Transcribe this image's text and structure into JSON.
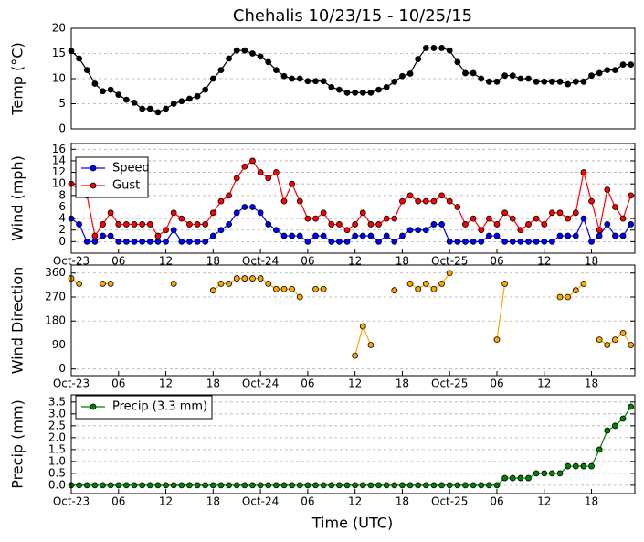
{
  "title": "Chehalis 10/23/15 - 10/25/15",
  "xlabel": "Time (UTC)",
  "chart_data": [
    {
      "type": "line",
      "ylabel": "Temp (°C)",
      "color": "#000000",
      "grid": true,
      "x": [
        0,
        1,
        2,
        3,
        4,
        5,
        6,
        7,
        8,
        9,
        10,
        11,
        12,
        13,
        14,
        15,
        16,
        17,
        18,
        19,
        20,
        21,
        22,
        23,
        24,
        25,
        26,
        27,
        28,
        29,
        30,
        31,
        32,
        33,
        34,
        35,
        36,
        37,
        38,
        39,
        40,
        41,
        42,
        43,
        44,
        45,
        46,
        47,
        48,
        49,
        50,
        51,
        52,
        53,
        54,
        55,
        56,
        57,
        58,
        59,
        60,
        61,
        62,
        63,
        64,
        65,
        66,
        67,
        68,
        69,
        70,
        71
      ],
      "values": [
        15.5,
        14,
        11.7,
        9,
        7.5,
        7.8,
        6.8,
        5.8,
        5.2,
        4,
        4,
        3.3,
        4,
        5,
        5.5,
        6,
        6.5,
        7.8,
        10,
        11.7,
        14,
        15.6,
        15.6,
        15,
        14.4,
        13.3,
        11.7,
        10.5,
        10,
        10,
        9.5,
        9.5,
        9.5,
        8.3,
        7.8,
        7.2,
        7.2,
        7.2,
        7.2,
        7.8,
        8.3,
        9.4,
        10.5,
        11,
        13.9,
        16.1,
        16.1,
        16.1,
        15.6,
        13.3,
        11.1,
        11.1,
        10,
        9.4,
        9.4,
        10.6,
        10.6,
        10,
        10,
        9.4,
        9.4,
        9.4,
        9.4,
        8.9,
        9.4,
        9.4,
        10.6,
        11.1,
        11.7,
        11.7,
        12.8,
        12.8
      ],
      "xlim": [
        0,
        71.5
      ],
      "ylim": [
        0,
        20
      ],
      "yticks": [
        0,
        5,
        10,
        15,
        20
      ]
    },
    {
      "type": "line",
      "ylabel": "Wind (mph)",
      "grid": true,
      "legend": "upper left",
      "x": [
        0,
        1,
        2,
        3,
        4,
        5,
        6,
        7,
        8,
        9,
        10,
        11,
        12,
        13,
        14,
        15,
        16,
        17,
        18,
        19,
        20,
        21,
        22,
        23,
        24,
        25,
        26,
        27,
        28,
        29,
        30,
        31,
        32,
        33,
        34,
        35,
        36,
        37,
        38,
        39,
        40,
        41,
        42,
        43,
        44,
        45,
        46,
        47,
        48,
        49,
        50,
        51,
        52,
        53,
        54,
        55,
        56,
        57,
        58,
        59,
        60,
        61,
        62,
        63,
        64,
        65,
        66,
        67,
        68,
        69,
        70,
        71
      ],
      "series": [
        {
          "name": "Speed",
          "color": "#0000ff",
          "values": [
            4,
            3,
            0,
            0,
            1,
            1,
            0,
            0,
            0,
            0,
            0,
            0,
            0,
            2,
            0,
            0,
            0,
            0,
            1,
            2,
            3,
            5,
            6,
            6,
            5,
            3,
            2,
            1,
            1,
            1,
            0,
            1,
            1,
            0,
            0,
            0,
            1,
            1,
            1,
            0,
            1,
            0,
            1,
            2,
            2,
            2,
            3,
            3,
            0,
            0,
            0,
            0,
            0,
            1,
            1,
            0,
            0,
            0,
            0,
            0,
            0,
            0,
            1,
            1,
            1,
            4,
            0,
            1,
            3,
            1,
            1,
            3
          ]
        },
        {
          "name": "Gust",
          "color": "#ff0000",
          "values": [
            10,
            9,
            8,
            1,
            3,
            5,
            3,
            3,
            3,
            3,
            3,
            1,
            2,
            5,
            4,
            3,
            3,
            3,
            5,
            7,
            8,
            11,
            13,
            14,
            12,
            11,
            12,
            7,
            10,
            7,
            4,
            4,
            5,
            3,
            3,
            2,
            3,
            5,
            3,
            3,
            4,
            4,
            7,
            8,
            7,
            7,
            7,
            8,
            7,
            6,
            3,
            4,
            2,
            4,
            3,
            5,
            4,
            2,
            3,
            4,
            3,
            5,
            5,
            4,
            5,
            12,
            7,
            2,
            9,
            6,
            4,
            8
          ]
        }
      ],
      "xlim": [
        0,
        71.5
      ],
      "ylim": [
        -2,
        17
      ],
      "yticks": [
        0,
        2,
        4,
        6,
        8,
        10,
        12,
        14,
        16
      ],
      "xticks": [
        {
          "value": 0,
          "label": "Oct-23"
        },
        {
          "value": 6,
          "label": "06"
        },
        {
          "value": 12,
          "label": "12"
        },
        {
          "value": 18,
          "label": "18"
        },
        {
          "value": 24,
          "label": "Oct-24"
        },
        {
          "value": 30,
          "label": "06"
        },
        {
          "value": 36,
          "label": "12"
        },
        {
          "value": 42,
          "label": "18"
        },
        {
          "value": 48,
          "label": "Oct-25"
        },
        {
          "value": 54,
          "label": "06"
        },
        {
          "value": 60,
          "label": "12"
        },
        {
          "value": 66,
          "label": "18"
        }
      ]
    },
    {
      "type": "line",
      "ylabel": "Wind Direction",
      "color": "#ffa500",
      "grid": true,
      "x": [
        0,
        1,
        2,
        3,
        4,
        5,
        6,
        7,
        8,
        9,
        10,
        11,
        12,
        13,
        14,
        15,
        16,
        17,
        18,
        19,
        20,
        21,
        22,
        23,
        24,
        25,
        26,
        27,
        28,
        29,
        30,
        31,
        32,
        33,
        34,
        35,
        36,
        37,
        38,
        39,
        40,
        41,
        42,
        43,
        44,
        45,
        46,
        47,
        48,
        49,
        50,
        51,
        52,
        53,
        54,
        55,
        56,
        57,
        58,
        59,
        60,
        61,
        62,
        63,
        64,
        65,
        66,
        67,
        68,
        69,
        70,
        71
      ],
      "values": [
        340,
        320,
        null,
        null,
        320,
        320,
        null,
        null,
        null,
        null,
        null,
        null,
        null,
        320,
        null,
        null,
        null,
        null,
        295,
        320,
        320,
        340,
        340,
        340,
        340,
        320,
        300,
        300,
        300,
        270,
        null,
        300,
        300,
        null,
        null,
        null,
        50,
        160,
        90,
        null,
        null,
        295,
        null,
        320,
        300,
        320,
        300,
        320,
        360,
        null,
        null,
        null,
        null,
        null,
        110,
        320,
        null,
        null,
        null,
        null,
        null,
        null,
        270,
        270,
        295,
        320,
        null,
        110,
        90,
        110,
        135,
        90
      ],
      "xlim": [
        0,
        71.5
      ],
      "ylim": [
        -25,
        390
      ],
      "yticks": [
        0,
        90,
        180,
        270,
        360
      ],
      "xticks": [
        {
          "value": 0,
          "label": "Oct-23"
        },
        {
          "value": 6,
          "label": "06"
        },
        {
          "value": 12,
          "label": "12"
        },
        {
          "value": 18,
          "label": "18"
        },
        {
          "value": 24,
          "label": "Oct-24"
        },
        {
          "value": 30,
          "label": "06"
        },
        {
          "value": 36,
          "label": "12"
        },
        {
          "value": 42,
          "label": "18"
        },
        {
          "value": 48,
          "label": "Oct-25"
        },
        {
          "value": 54,
          "label": "06"
        },
        {
          "value": 60,
          "label": "12"
        },
        {
          "value": 66,
          "label": "18"
        }
      ]
    },
    {
      "type": "line",
      "ylabel": "Precip (mm)",
      "grid": true,
      "legend": "upper left",
      "x": [
        0,
        1,
        2,
        3,
        4,
        5,
        6,
        7,
        8,
        9,
        10,
        11,
        12,
        13,
        14,
        15,
        16,
        17,
        18,
        19,
        20,
        21,
        22,
        23,
        24,
        25,
        26,
        27,
        28,
        29,
        30,
        31,
        32,
        33,
        34,
        35,
        36,
        37,
        38,
        39,
        40,
        41,
        42,
        43,
        44,
        45,
        46,
        47,
        48,
        49,
        50,
        51,
        52,
        53,
        54,
        55,
        56,
        57,
        58,
        59,
        60,
        61,
        62,
        63,
        64,
        65,
        66,
        67,
        68,
        69,
        70,
        71
      ],
      "series": [
        {
          "name": "Precip (3.3 mm)",
          "color": "#008000",
          "values": [
            0,
            0,
            0,
            0,
            0,
            0,
            0,
            0,
            0,
            0,
            0,
            0,
            0,
            0,
            0,
            0,
            0,
            0,
            0,
            0,
            0,
            0,
            0,
            0,
            0,
            0,
            0,
            0,
            0,
            0,
            0,
            0,
            0,
            0,
            0,
            0,
            0,
            0,
            0,
            0,
            0,
            0,
            0,
            0,
            0,
            0,
            0,
            0,
            0,
            0,
            0,
            0,
            0,
            0,
            0,
            0.3,
            0.3,
            0.3,
            0.3,
            0.5,
            0.5,
            0.5,
            0.5,
            0.8,
            0.8,
            0.8,
            0.8,
            1.5,
            2.3,
            2.5,
            2.8,
            3.3
          ]
        }
      ],
      "xlim": [
        0,
        71.5
      ],
      "ylim": [
        -0.35,
        3.8
      ],
      "yticks": [
        {
          "value": 0,
          "label": "0.0"
        },
        {
          "value": 0.5,
          "label": "0.5"
        },
        {
          "value": 1,
          "label": "1.0"
        },
        {
          "value": 1.5,
          "label": "1.5"
        },
        {
          "value": 2,
          "label": "2.0"
        },
        {
          "value": 2.5,
          "label": "2.5"
        },
        {
          "value": 3,
          "label": "3.0"
        },
        {
          "value": 3.5,
          "label": "3.5"
        }
      ],
      "xticks": [
        {
          "value": 0,
          "label": "Oct-23"
        },
        {
          "value": 6,
          "label": "06"
        },
        {
          "value": 12,
          "label": "12"
        },
        {
          "value": 18,
          "label": "18"
        },
        {
          "value": 24,
          "label": "Oct-24"
        },
        {
          "value": 30,
          "label": "06"
        },
        {
          "value": 36,
          "label": "12"
        },
        {
          "value": 42,
          "label": "18"
        },
        {
          "value": 48,
          "label": "Oct-25"
        },
        {
          "value": 54,
          "label": "06"
        },
        {
          "value": 60,
          "label": "12"
        },
        {
          "value": 66,
          "label": "18"
        }
      ]
    }
  ]
}
